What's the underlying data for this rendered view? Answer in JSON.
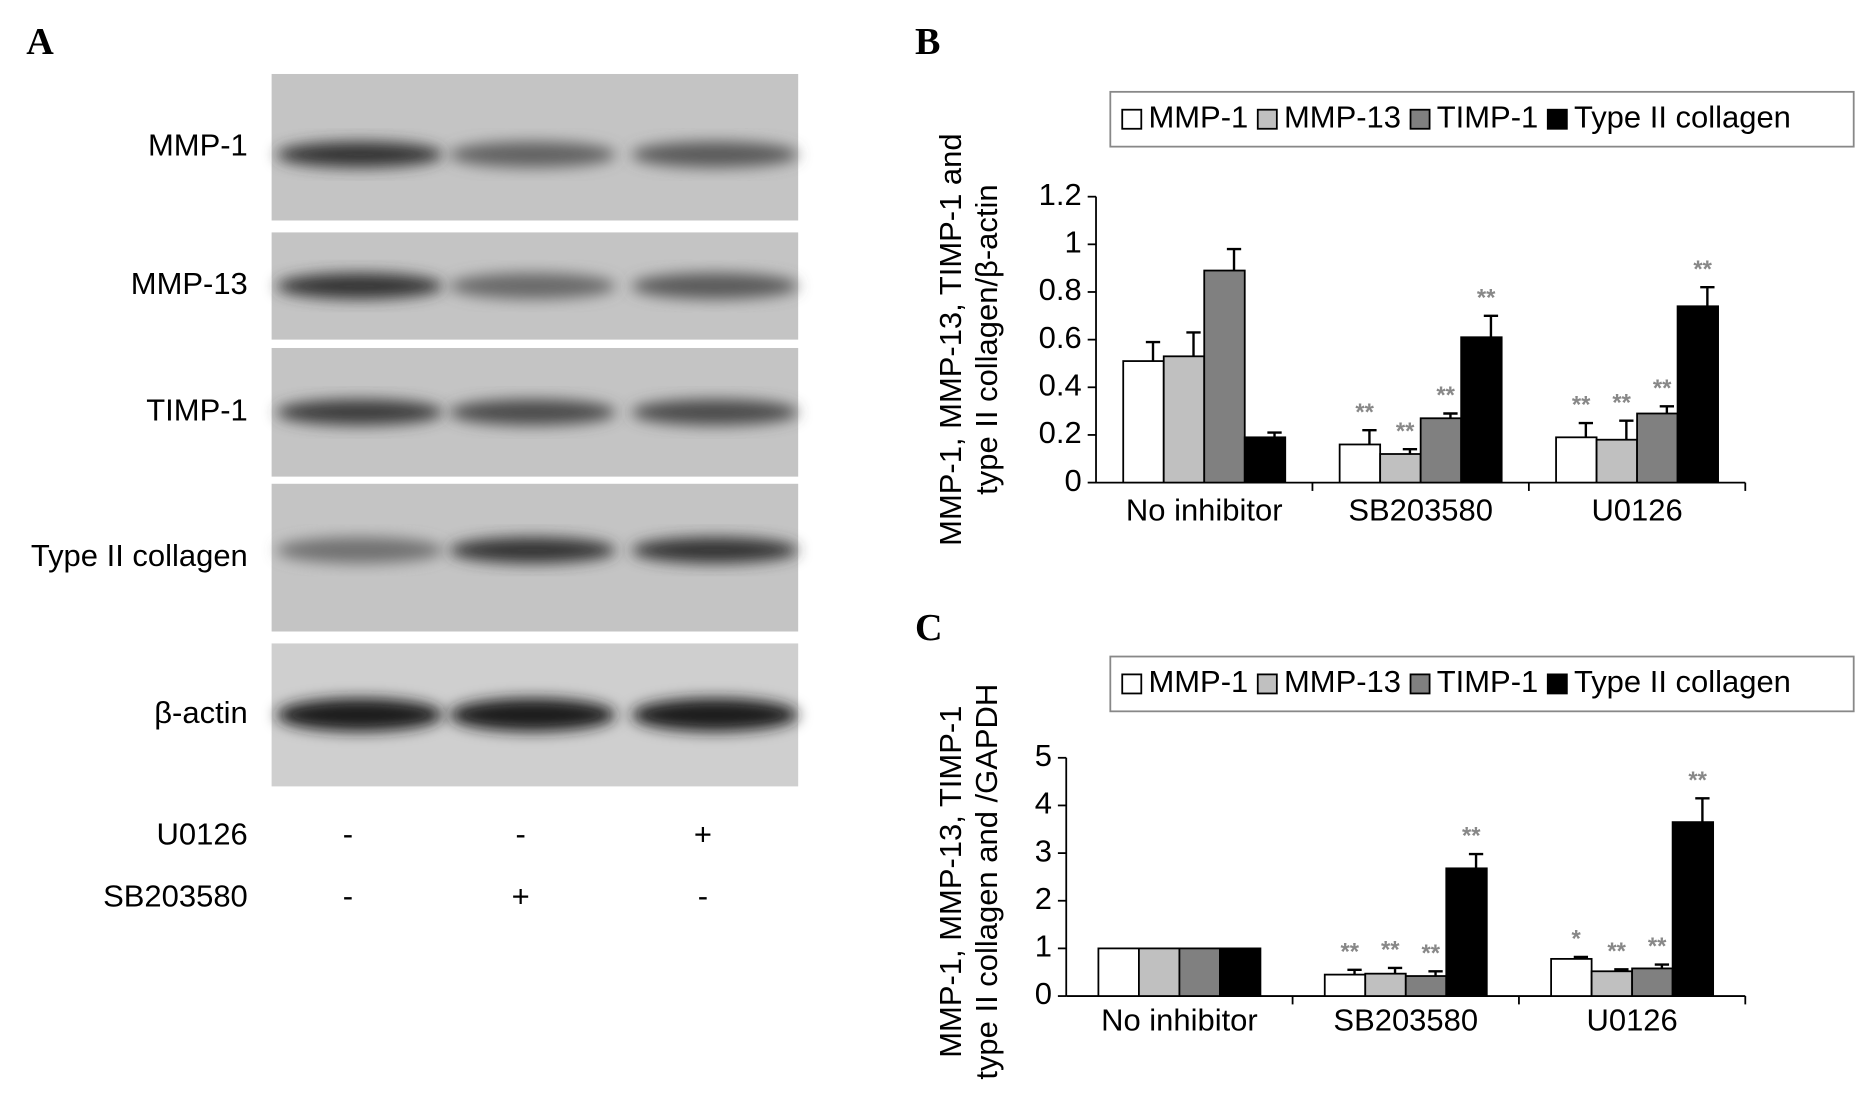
{
  "panel_a": {
    "label": "A",
    "rows": [
      "MMP-1",
      "MMP-13",
      "TIMP-1",
      "Type II collagen",
      "β-actin"
    ],
    "treatments": [
      {
        "name": "U0126",
        "signs": [
          "-",
          "-",
          "+"
        ]
      },
      {
        "name": "SB203580",
        "signs": [
          "-",
          "+",
          "-"
        ]
      }
    ]
  },
  "chart_data": [
    {
      "type": "bar",
      "label": "B",
      "ylabel": [
        "MMP-1, MMP-13, TIMP-1 and",
        "type II collagen/β-actin"
      ],
      "categories": [
        "No inhibitor",
        "SB203580",
        "U0126"
      ],
      "ylim": [
        0,
        1.2
      ],
      "yticks": [
        0,
        0.2,
        0.4,
        0.6,
        0.8,
        1,
        1.2
      ],
      "series": [
        {
          "name": "MMP-1",
          "color": "#ffffff",
          "values": [
            0.51,
            0.16,
            0.19
          ],
          "errors": [
            0.08,
            0.06,
            0.06
          ],
          "annotations": [
            null,
            "**",
            "**"
          ]
        },
        {
          "name": "MMP-13",
          "color": "#c0c0c0",
          "values": [
            0.53,
            0.12,
            0.18
          ],
          "errors": [
            0.1,
            0.02,
            0.08
          ],
          "annotations": [
            null,
            "**",
            "**"
          ]
        },
        {
          "name": "TIMP-1",
          "color": "#808080",
          "values": [
            0.89,
            0.27,
            0.29
          ],
          "errors": [
            0.09,
            0.02,
            0.03
          ],
          "annotations": [
            null,
            "**",
            "**"
          ]
        },
        {
          "name": "Type II collagen",
          "color": "#000000",
          "values": [
            0.19,
            0.61,
            0.74
          ],
          "errors": [
            0.02,
            0.09,
            0.08
          ],
          "annotations": [
            null,
            "**",
            "**"
          ]
        }
      ]
    },
    {
      "type": "bar",
      "label": "C",
      "ylabel": [
        "MMP-1, MMP-13, TIMP-1",
        "type II collagen and /GAPDH"
      ],
      "categories": [
        "No inhibitor",
        "SB203580",
        "U0126"
      ],
      "ylim": [
        0,
        5
      ],
      "yticks": [
        0,
        1,
        2,
        3,
        4,
        5
      ],
      "series": [
        {
          "name": "MMP-1",
          "color": "#ffffff",
          "values": [
            1,
            0.45,
            0.78
          ],
          "errors": [
            0,
            0.1,
            0.04
          ],
          "annotations": [
            null,
            "**",
            "*"
          ]
        },
        {
          "name": "MMP-13",
          "color": "#c0c0c0",
          "values": [
            1,
            0.47,
            0.52
          ],
          "errors": [
            0,
            0.12,
            0.04
          ],
          "annotations": [
            null,
            "**",
            "**"
          ]
        },
        {
          "name": "TIMP-1",
          "color": "#808080",
          "values": [
            1,
            0.42,
            0.58
          ],
          "errors": [
            0,
            0.1,
            0.08
          ],
          "annotations": [
            null,
            "**",
            "**"
          ]
        },
        {
          "name": "Type II collagen",
          "color": "#000000",
          "values": [
            1,
            2.68,
            3.65
          ],
          "errors": [
            0,
            0.3,
            0.5
          ],
          "annotations": [
            null,
            "**",
            "**"
          ]
        }
      ]
    }
  ]
}
